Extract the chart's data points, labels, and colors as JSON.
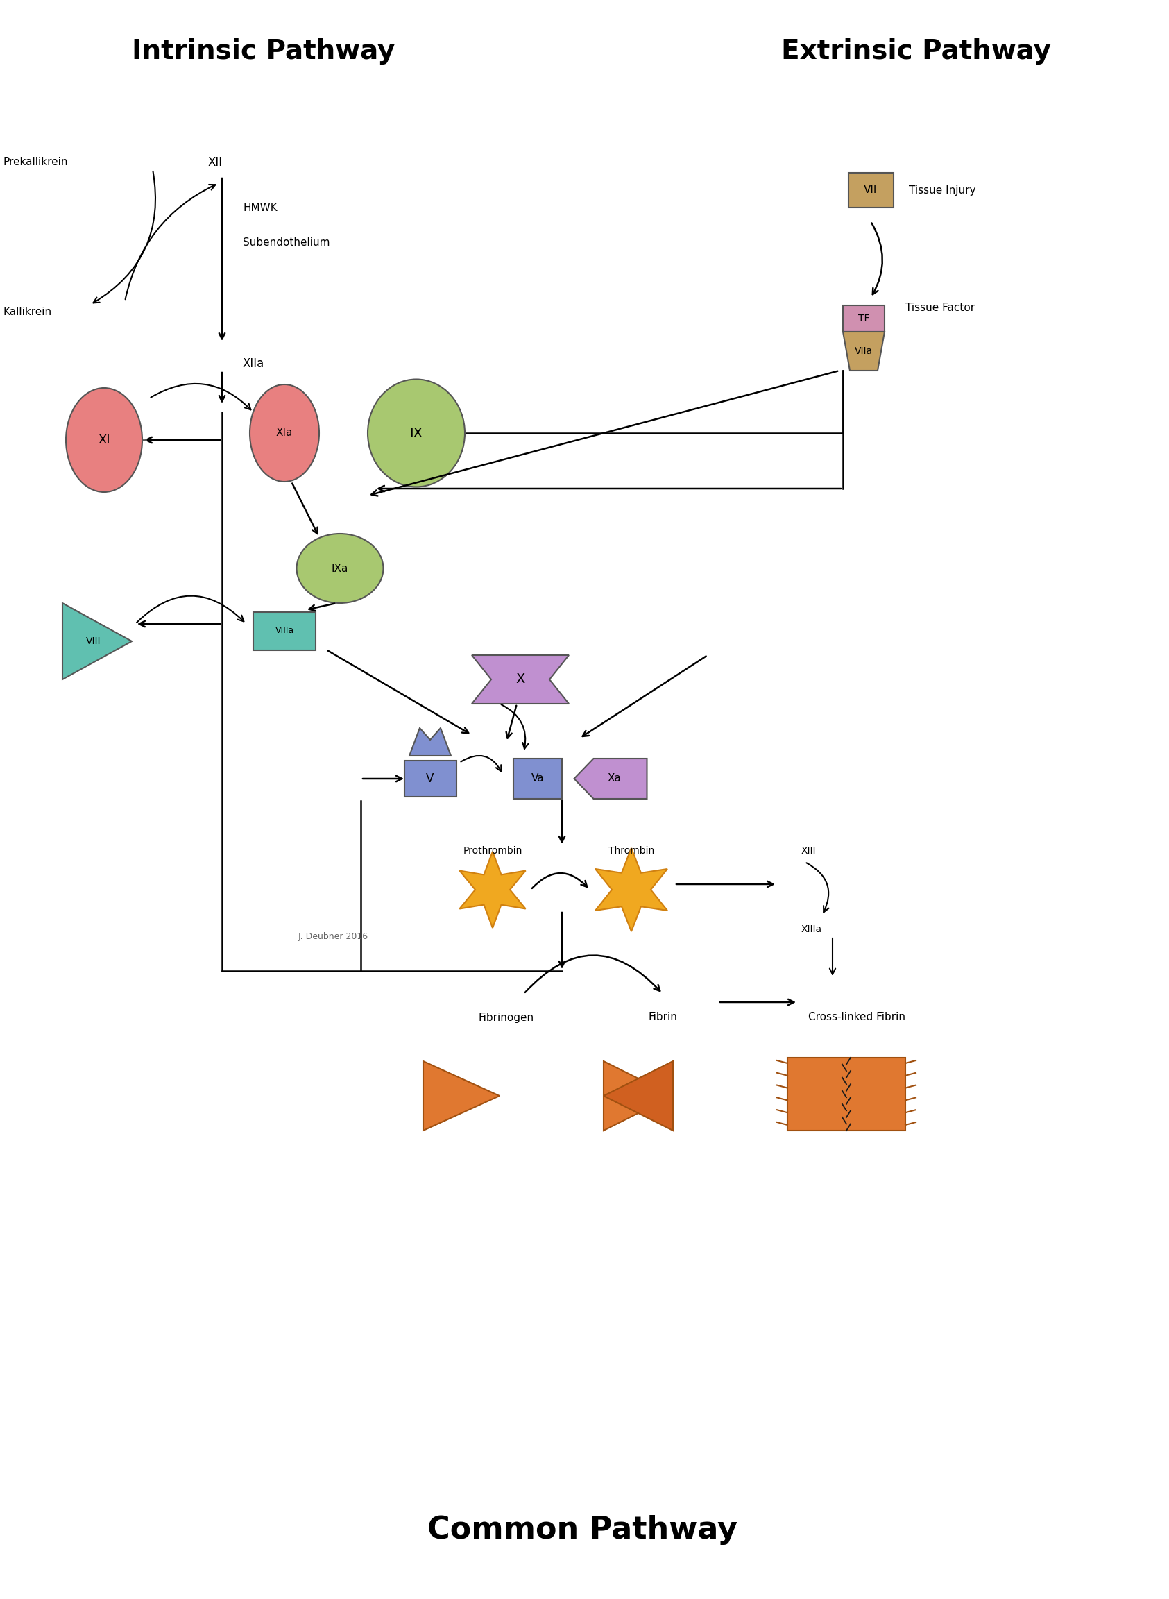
{
  "bg_color": "#ffffff",
  "title_intrinsic": "Intrinsic Pathway",
  "title_extrinsic": "Extrinsic Pathway",
  "title_common": "Common Pathway",
  "credit": "J. Deubner 2016",
  "colors": {
    "red_factor": "#E88080",
    "green_factor": "#A8C870",
    "teal_factor": "#60C0B0",
    "blue_factor": "#8090D0",
    "purple_factor": "#C090D0",
    "tan_factor": "#C4A060",
    "pink_factor": "#D090B0",
    "orange_fibrin": "#E07830",
    "star_color": "#F0A820",
    "star_edge": "#D08010"
  }
}
